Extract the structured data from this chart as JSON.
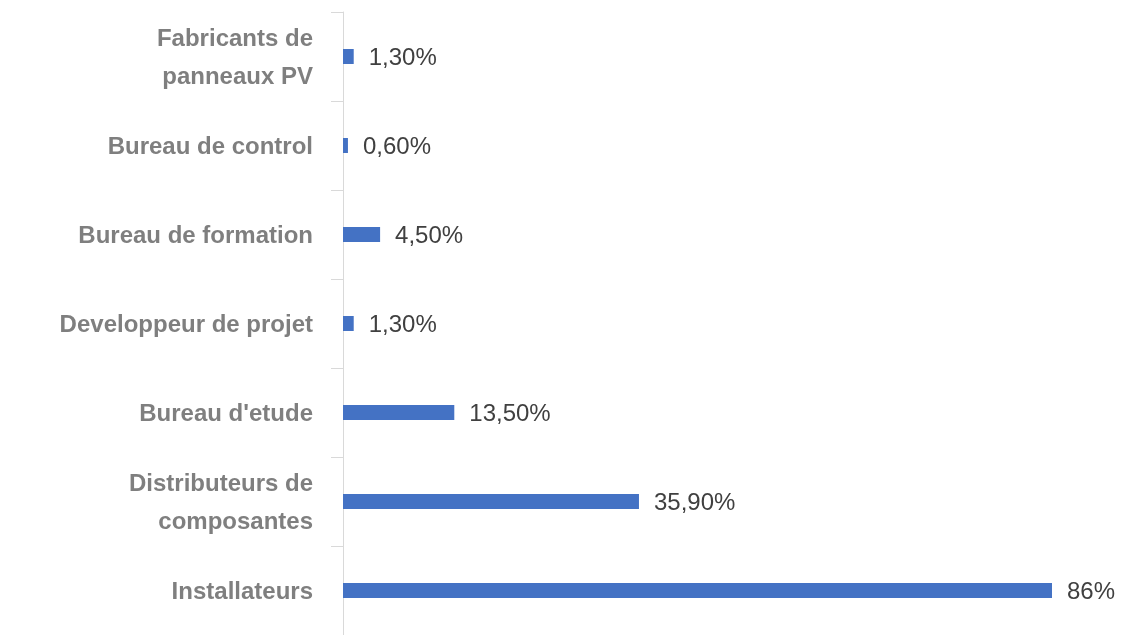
{
  "chart_data": {
    "type": "bar",
    "orientation": "horizontal",
    "categories": [
      "Fabricants de\npanneaux PV",
      "Bureau de control",
      "Bureau de formation",
      "Developpeur de projet",
      "Bureau d'etude",
      "Distributeurs de\ncomposantes",
      "Installateurs"
    ],
    "values": [
      1.3,
      0.6,
      4.5,
      1.3,
      13.5,
      35.9,
      86
    ],
    "value_labels": [
      "1,30%",
      "0,60%",
      "4,50%",
      "1,30%",
      "13,50%",
      "35,90%",
      "86%"
    ],
    "color": "#4472c4",
    "grid": false
  }
}
